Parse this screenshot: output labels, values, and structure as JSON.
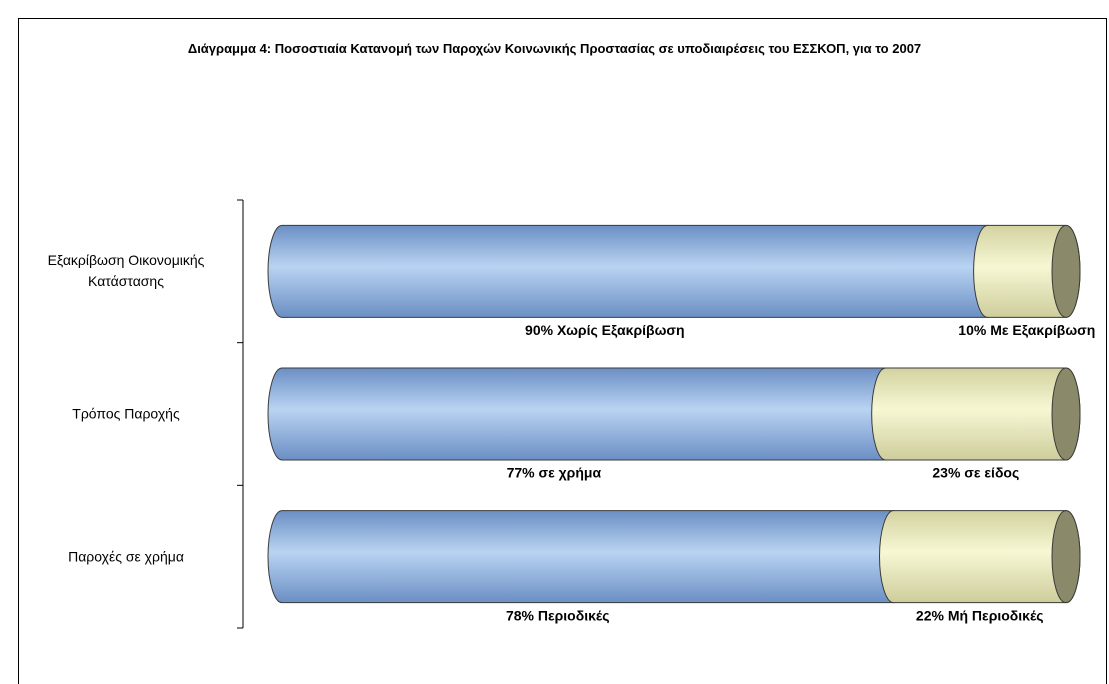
{
  "chart_data": {
    "type": "stacked-cylinder-bar",
    "title": "Διάγραμμα 4: Ποσοστιαία Κατανομή των Παροχών Κοινωνικής Προστασίας σε υποδιαιρέσεις του ΕΣΣΚΟΠ, για το 2007",
    "categories": [
      "Εξακρίβωση Οικονομικής Κατάστασης",
      "Τρόπος Παροχής",
      "Παροχές σε χρήμα"
    ],
    "series": [
      {
        "color": "#9dbde6",
        "values": [
          90,
          77,
          78
        ],
        "value_labels": [
          "90% Χωρίς Εξακρίβωση",
          "77% σε χρήμα",
          "78% Περιοδικές"
        ]
      },
      {
        "color": "#f2f2c6",
        "values": [
          10,
          23,
          22
        ],
        "value_labels": [
          "10% Με Εξακρίβωση",
          "23% σε είδος",
          "22% Μή Περιοδικές"
        ]
      }
    ]
  }
}
